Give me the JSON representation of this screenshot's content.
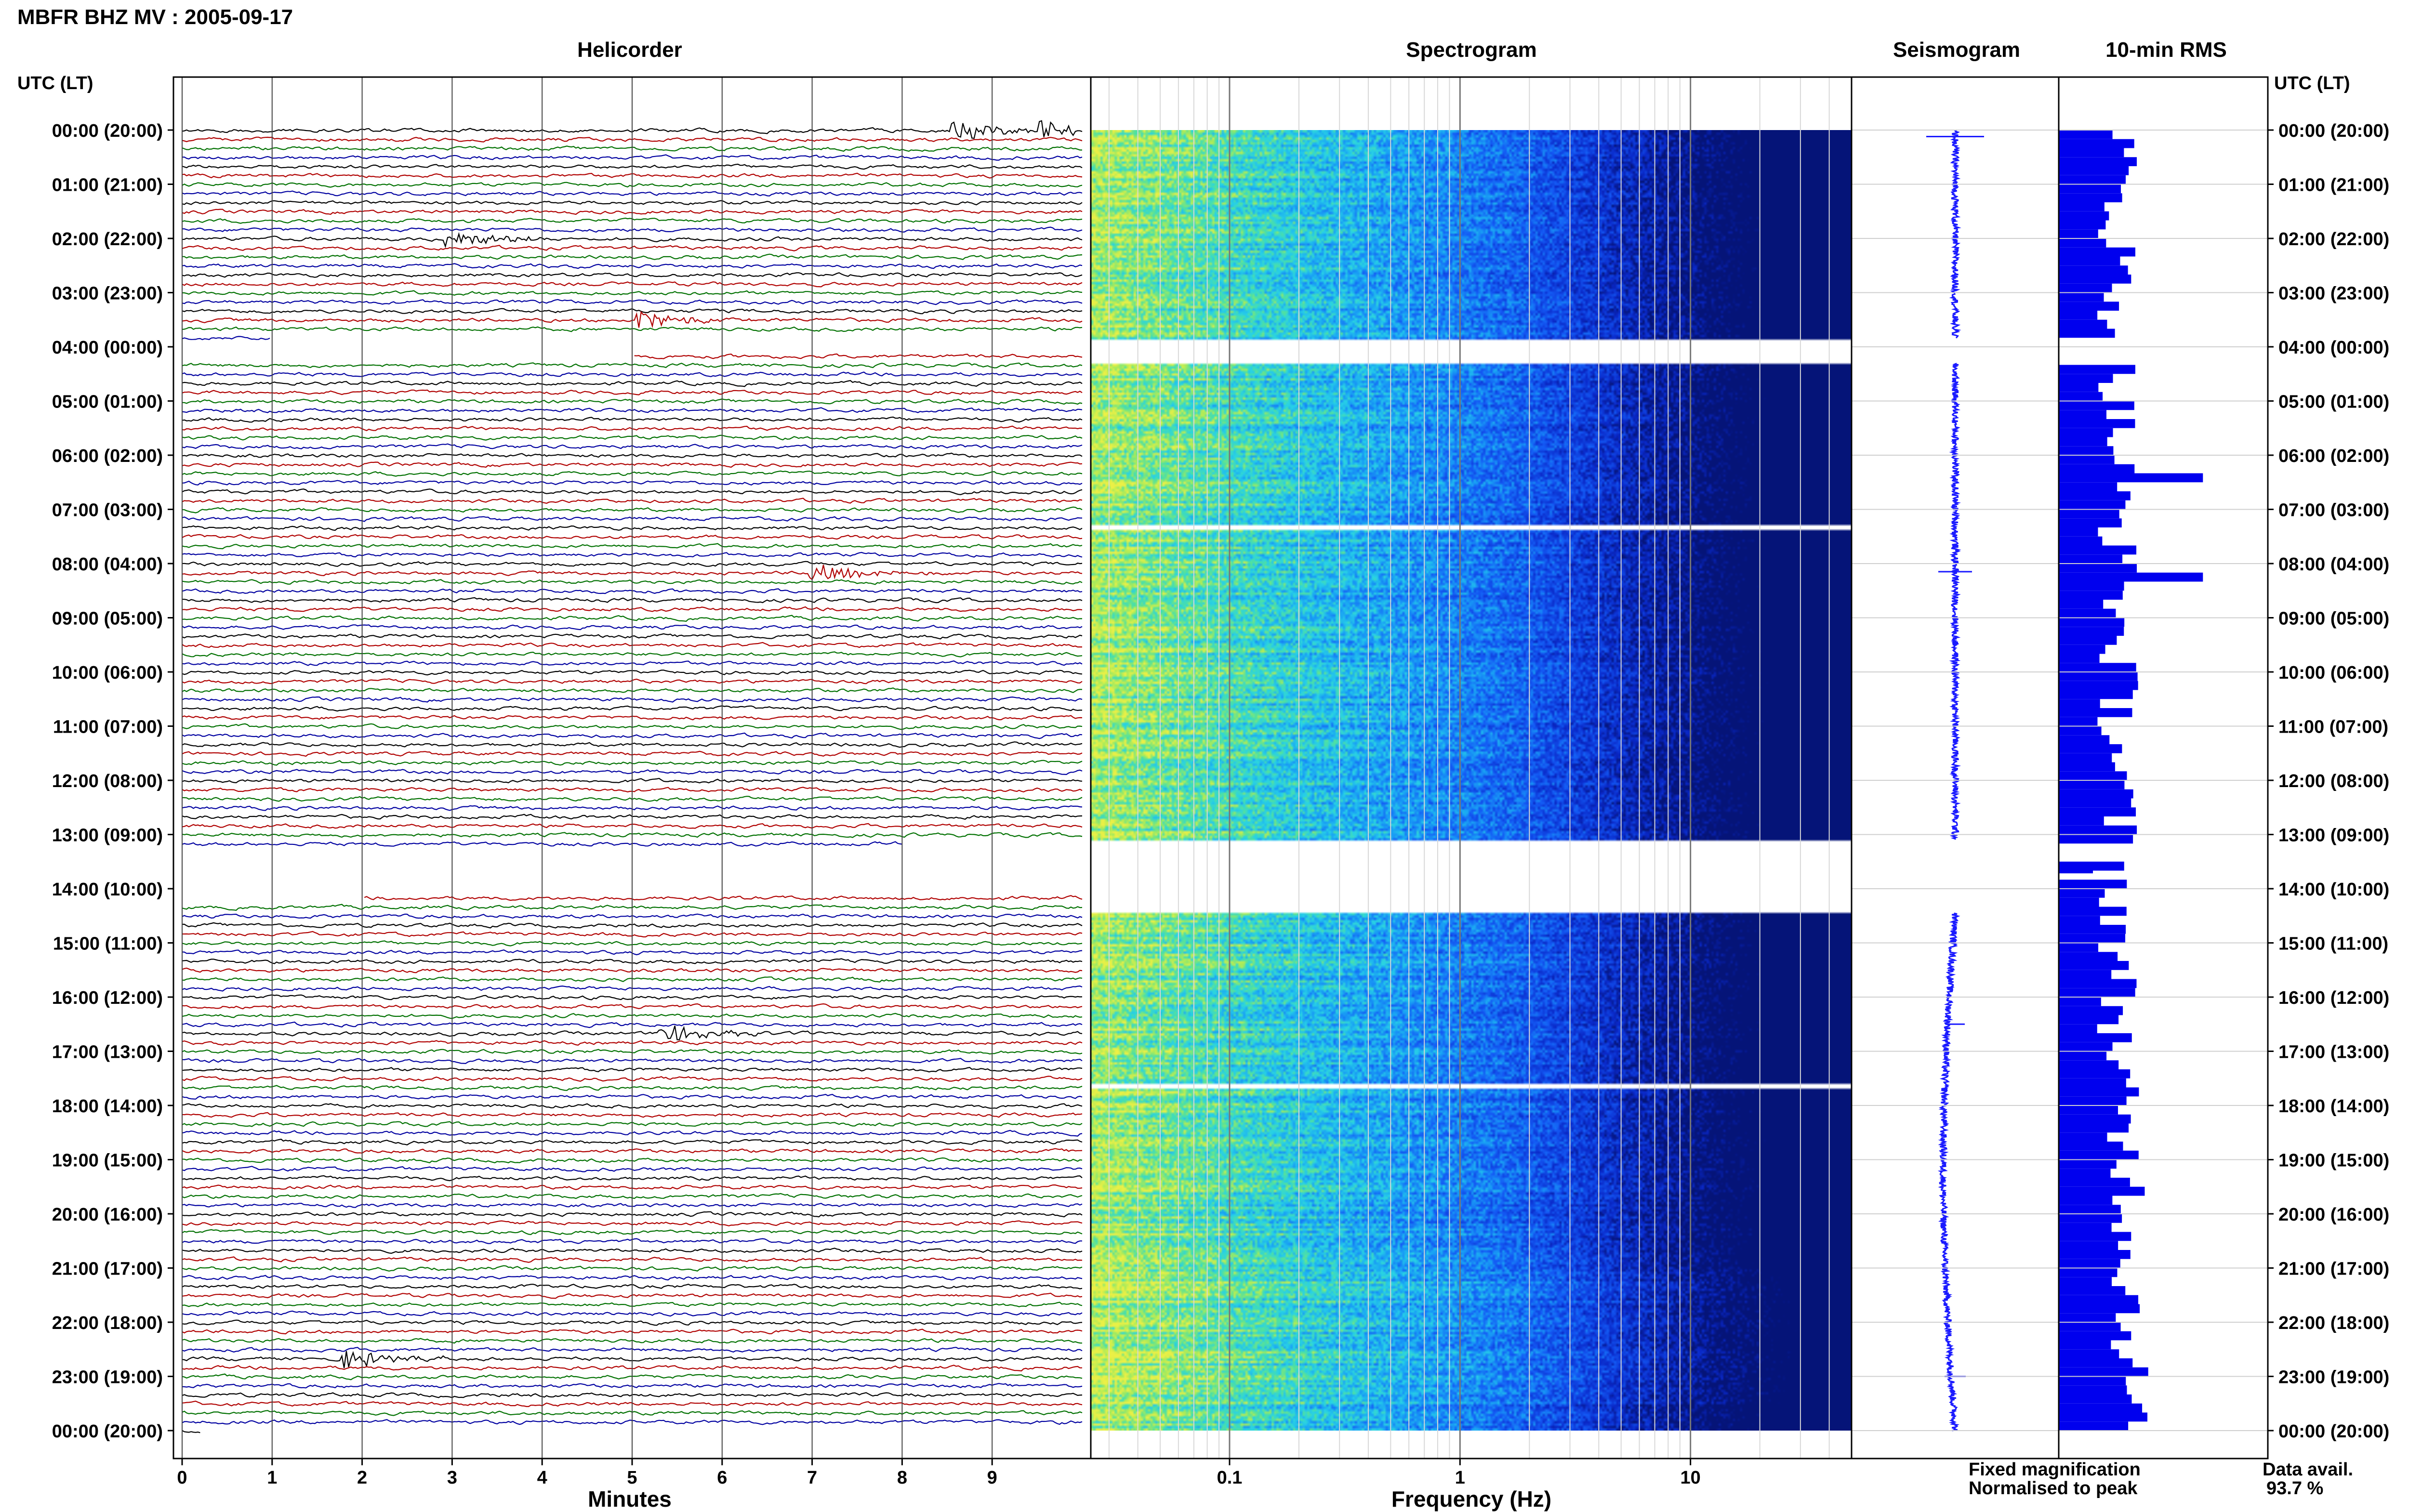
{
  "header": {
    "title": "MBFR BHZ MV : 2005-09-17"
  },
  "panels": {
    "helicorder": "Helicorder",
    "spectrogram": "Spectrogram",
    "seismogram": "Seismogram",
    "rms": "10-min RMS"
  },
  "axis_labels": {
    "time_left": "UTC (LT)",
    "time_right": "UTC (LT)",
    "helicorder_x": "Minutes",
    "spectrogram_x": "Frequency (Hz)"
  },
  "legend": {
    "fixed": "Fixed magnification",
    "normalised": "Normalised to peak",
    "fixed_color": "#0000ff",
    "normalised_color": "#ff0000"
  },
  "availability": {
    "label": "Data avail.",
    "value": "93.7 %"
  },
  "colors": {
    "trace_cycle": [
      "#000000",
      "#b00000",
      "#007000",
      "#0000a0"
    ],
    "seismogram": "#1a1aff",
    "rms_bar": "#0000ee"
  },
  "chart_data": [
    {
      "type": "line",
      "title": "Helicorder",
      "xlabel": "Minutes",
      "x_ticks": [
        "0",
        "1",
        "2",
        "3",
        "4",
        "5",
        "6",
        "7",
        "8",
        "9"
      ],
      "xlim": [
        0,
        10
      ],
      "y_ticks_utc_lt": [
        "00:00 (20:00)",
        "01:00 (21:00)",
        "02:00 (22:00)",
        "03:00 (23:00)",
        "04:00 (00:00)",
        "05:00 (01:00)",
        "06:00 (02:00)",
        "07:00 (03:00)",
        "08:00 (04:00)",
        "09:00 (05:00)",
        "10:00 (06:00)",
        "11:00 (07:00)",
        "12:00 (08:00)",
        "13:00 (09:00)",
        "14:00 (10:00)",
        "15:00 (11:00)",
        "16:00 (12:00)",
        "17:00 (13:00)",
        "18:00 (14:00)",
        "19:00 (15:00)",
        "20:00 (16:00)",
        "21:00 (17:00)",
        "22:00 (18:00)",
        "23:00 (19:00)",
        "00:00 (20:00)"
      ],
      "ylim_hours": [
        0,
        24
      ],
      "lines_per_hour": 6,
      "gaps_hours": [
        [
          3.85,
          4.25
        ],
        [
          13.3,
          14.2
        ]
      ],
      "events": [
        {
          "hour": 0.0,
          "minute": 8.6
        },
        {
          "hour": 0.0,
          "minute": 9.55
        },
        {
          "hour": 2.0,
          "minute": 2.95
        },
        {
          "hour": 3.5,
          "minute": 5.1
        },
        {
          "hour": 8.1,
          "minute": 7.0
        },
        {
          "hour": 16.7,
          "minute": 5.35
        },
        {
          "hour": 22.8,
          "minute": 1.8
        }
      ]
    },
    {
      "type": "heatmap",
      "title": "Spectrogram",
      "xlabel": "Frequency (Hz)",
      "x_scale": "log",
      "xlim": [
        0.025,
        50
      ],
      "x_ticks": [
        "0.1",
        "1",
        "10"
      ],
      "ylim_hours": [
        0,
        24
      ],
      "gaps_hours": [
        [
          3.85,
          4.3
        ],
        [
          7.25,
          7.35
        ],
        [
          13.1,
          14.4
        ],
        [
          17.58,
          17.65
        ]
      ],
      "colormap": "yellow-green-cyan-blue"
    },
    {
      "type": "line",
      "title": "Seismogram",
      "ylim_hours": [
        0,
        24
      ],
      "gaps_hours": [
        [
          3.85,
          4.3
        ],
        [
          13.1,
          14.45
        ]
      ]
    },
    {
      "type": "bar",
      "title": "10-min RMS",
      "ylim_hours": [
        0,
        24
      ],
      "bin_minutes": 10,
      "gaps_hours": [
        [
          3.85,
          4.3
        ],
        [
          13.1,
          13.45
        ],
        [
          13.6,
          13.8
        ]
      ],
      "bar_color": "#0000ee",
      "peaks_hours": [
        6.4,
        8.15
      ]
    }
  ]
}
